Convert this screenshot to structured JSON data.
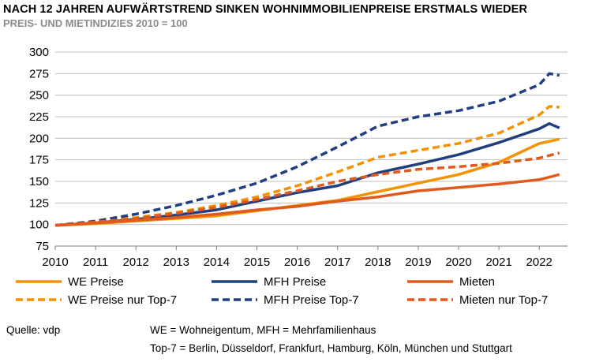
{
  "header": {
    "title": "NACH 12 JAHREN AUFWÄRTSTREND SINKEN WOHNIMMOBILIENPREISE ERSTMALS WIEDER",
    "subtitle": "PREIS- UND MIETINDIZIES 2010 = 100"
  },
  "footer": {
    "source": "Quelle: vdp",
    "note1": "WE = Wohneigentum, MFH = Mehrfamilienhaus",
    "note2": "Top-7 = Berlin, Düsseldorf, Frankfurt, Hamburg, Köln, München und Stuttgart"
  },
  "chart_data": {
    "type": "line",
    "title": "NACH 12 JAHREN AUFWÄRTSTREND SINKEN WOHNIMMOBILIENPREISE ERSTMALS WIEDER",
    "subtitle": "PREIS- UND MIETINDIZIES 2010 = 100",
    "xlabel": "",
    "ylabel": "",
    "xlim": [
      2010,
      2022.7
    ],
    "ylim": [
      75,
      300
    ],
    "x_ticks": [
      2010,
      2011,
      2012,
      2013,
      2014,
      2015,
      2016,
      2017,
      2018,
      2019,
      2020,
      2021,
      2022
    ],
    "y_ticks": [
      75,
      100,
      125,
      150,
      175,
      200,
      225,
      250,
      275,
      300
    ],
    "grid": "horizontal",
    "legend_position": "bottom",
    "series": [
      {
        "name": "WE Preise",
        "color": "#f39200",
        "dash": "solid",
        "x": [
          2010,
          2011,
          2012,
          2013,
          2014,
          2015,
          2016,
          2017,
          2018,
          2019,
          2020,
          2021,
          2022,
          2022.5
        ],
        "values": [
          99,
          101,
          104,
          107,
          110,
          116,
          122,
          128,
          138,
          148,
          158,
          172,
          194,
          199
        ]
      },
      {
        "name": "MFH Preise",
        "color": "#1f3f7f",
        "dash": "solid",
        "x": [
          2010,
          2011,
          2012,
          2013,
          2014,
          2015,
          2016,
          2017,
          2018,
          2019,
          2020,
          2021,
          2022,
          2022.25,
          2022.5
        ],
        "values": [
          99,
          102,
          106,
          111,
          117,
          127,
          137,
          145,
          160,
          170,
          181,
          195,
          211,
          217,
          212
        ]
      },
      {
        "name": "Mieten",
        "color": "#e05a1e",
        "dash": "solid",
        "x": [
          2010,
          2011,
          2012,
          2013,
          2014,
          2015,
          2016,
          2017,
          2018,
          2019,
          2020,
          2021,
          2022,
          2022.5
        ],
        "values": [
          99,
          102,
          105,
          108,
          112,
          117,
          121,
          127,
          132,
          139,
          143,
          147,
          152,
          158
        ]
      },
      {
        "name": "WE Preise nur Top-7",
        "color": "#f39200",
        "dash": "dashed",
        "x": [
          2010,
          2011,
          2012,
          2013,
          2014,
          2015,
          2016,
          2017,
          2018,
          2019,
          2020,
          2021,
          2022,
          2022.25,
          2022.5
        ],
        "values": [
          99,
          103,
          108,
          114,
          122,
          132,
          145,
          161,
          178,
          186,
          194,
          206,
          227,
          237,
          236
        ]
      },
      {
        "name": "MFH Preise Top-7",
        "color": "#1f3f7f",
        "dash": "dashed",
        "x": [
          2010,
          2011,
          2012,
          2013,
          2014,
          2015,
          2016,
          2017,
          2018,
          2019,
          2020,
          2021,
          2022,
          2022.25,
          2022.5
        ],
        "values": [
          99,
          104,
          112,
          122,
          134,
          148,
          167,
          190,
          214,
          225,
          232,
          243,
          262,
          275,
          273
        ]
      },
      {
        "name": "Mieten nur Top-7",
        "color": "#e05a1e",
        "dash": "dashed",
        "x": [
          2010,
          2011,
          2012,
          2013,
          2014,
          2015,
          2016,
          2017,
          2018,
          2019,
          2020,
          2021,
          2022,
          2022.5
        ],
        "values": [
          99,
          103,
          107,
          113,
          120,
          129,
          139,
          150,
          158,
          164,
          167,
          171,
          177,
          183
        ]
      }
    ]
  }
}
